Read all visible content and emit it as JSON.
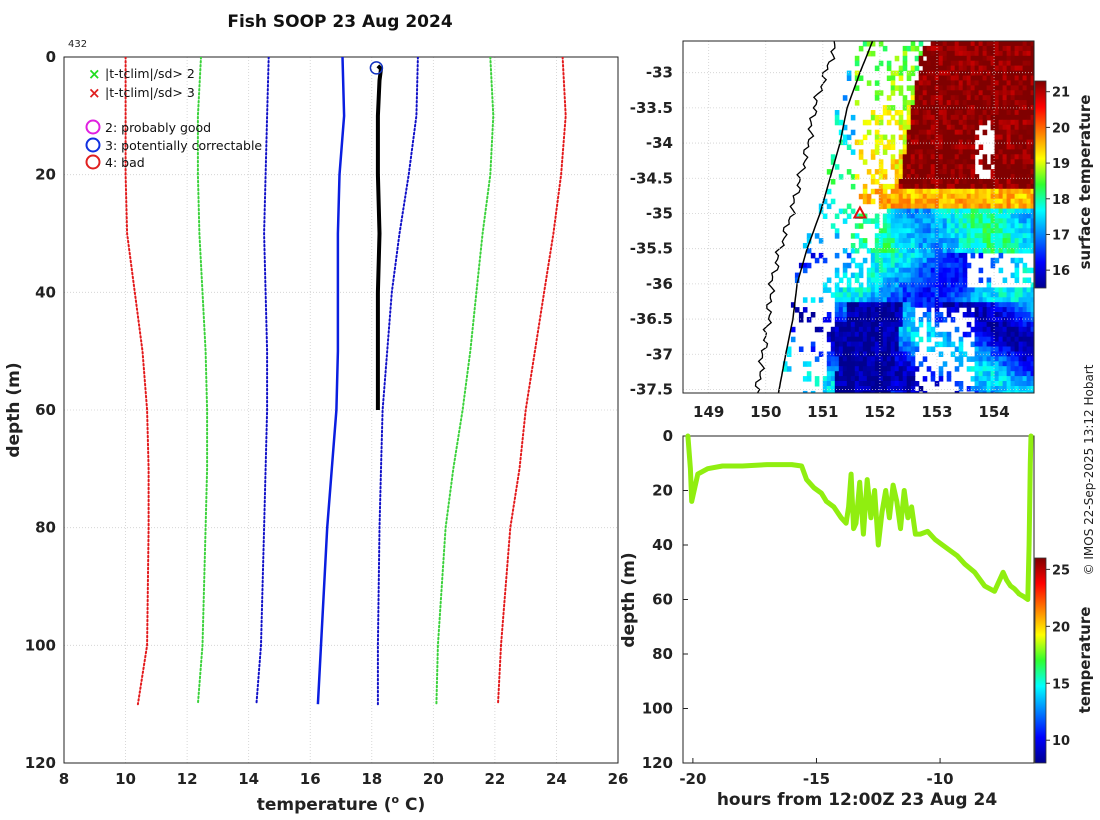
{
  "chart_data": [
    {
      "type": "line",
      "name": "profile",
      "title": "Fish SOOP 23 Aug 2024",
      "profile_id": "432",
      "xlabel": "temperature",
      "xlabel_unit": "(",
      "xlabel_sup": "o",
      "xlabel_tail": " C)",
      "ylabel": "depth (m)",
      "xlim": [
        8,
        26
      ],
      "ylim": [
        0,
        120
      ],
      "xticks": [
        8,
        10,
        12,
        14,
        16,
        18,
        20,
        22,
        24,
        26
      ],
      "yticks": [
        0,
        20,
        40,
        60,
        80,
        100,
        120
      ],
      "legend": [
        "|t-tclim|/sd> 2",
        "|t-tclim|/sd> 3",
        "2: probably good",
        "3: potentially correctable",
        "4: bad"
      ],
      "series": [
        {
          "name": "clim -3sd",
          "color": "#e31a1c",
          "style": "dotted",
          "x": [
            10.0,
            10.0,
            10.0,
            10.05,
            10.3,
            10.55,
            10.7,
            10.75,
            10.75,
            10.7,
            10.4
          ],
          "y": [
            0,
            10,
            20,
            30,
            40,
            50,
            60,
            70,
            80,
            100,
            110
          ]
        },
        {
          "name": "clim -2sd",
          "color": "#3cd23c",
          "style": "dotted",
          "x": [
            12.45,
            12.35,
            12.35,
            12.4,
            12.5,
            12.6,
            12.65,
            12.65,
            12.6,
            12.5,
            12.35
          ],
          "y": [
            0,
            10,
            20,
            30,
            40,
            50,
            60,
            70,
            80,
            100,
            110
          ]
        },
        {
          "name": "clim -1sd",
          "color": "#1010c8",
          "style": "dotted",
          "x": [
            14.65,
            14.6,
            14.55,
            14.5,
            14.55,
            14.6,
            14.6,
            14.55,
            14.5,
            14.4,
            14.25
          ],
          "y": [
            0,
            10,
            20,
            30,
            40,
            50,
            60,
            70,
            80,
            100,
            110
          ]
        },
        {
          "name": "clim mean",
          "color": "#0a1ee0",
          "style": "solid",
          "x": [
            17.05,
            17.1,
            16.95,
            16.9,
            16.9,
            16.9,
            16.85,
            16.7,
            16.55,
            16.35,
            16.25
          ],
          "y": [
            0,
            10,
            20,
            30,
            40,
            50,
            60,
            70,
            80,
            100,
            110
          ]
        },
        {
          "name": "clim +1sd",
          "color": "#1010c8",
          "style": "dotted",
          "x": [
            19.5,
            19.45,
            19.2,
            18.9,
            18.65,
            18.5,
            18.35,
            18.3,
            18.25,
            18.2,
            18.2
          ],
          "y": [
            0,
            10,
            20,
            30,
            40,
            50,
            60,
            70,
            80,
            100,
            110
          ]
        },
        {
          "name": "clim +2sd",
          "color": "#3cd23c",
          "style": "dotted",
          "x": [
            21.85,
            21.95,
            21.85,
            21.6,
            21.4,
            21.2,
            20.95,
            20.65,
            20.4,
            20.15,
            20.1
          ],
          "y": [
            0,
            10,
            20,
            30,
            40,
            50,
            60,
            70,
            80,
            100,
            110
          ]
        },
        {
          "name": "clim +3sd",
          "color": "#e31a1c",
          "style": "dotted",
          "x": [
            24.2,
            24.3,
            24.15,
            23.9,
            23.6,
            23.3,
            23.0,
            22.8,
            22.5,
            22.2,
            22.1
          ],
          "y": [
            0,
            10,
            20,
            30,
            40,
            50,
            60,
            70,
            80,
            100,
            110
          ]
        },
        {
          "name": "observed",
          "color": "#000000",
          "style": "solid",
          "x": [
            18.2,
            18.3,
            18.25,
            18.2,
            18.2,
            18.25,
            18.2,
            18.2,
            18.2
          ],
          "y": [
            1.5,
            2.0,
            4.0,
            10,
            20,
            30,
            40,
            50,
            60
          ]
        }
      ],
      "flag_marker": {
        "x": 18.15,
        "y": 1,
        "flag": "3: potentially correctable"
      }
    },
    {
      "type": "heatmap",
      "name": "sst_map",
      "xlim": [
        148.55,
        154.7
      ],
      "ylim": [
        -37.55,
        -32.55
      ],
      "xticks": [
        149,
        150,
        151,
        152,
        153,
        154
      ],
      "yticks": [
        -33,
        -33.5,
        -34,
        -34.5,
        -35,
        -35.5,
        -36,
        -36.5,
        -37,
        -37.5
      ],
      "colorbar_label": "surface temperature",
      "colorbar_ticks": [
        16,
        17,
        18,
        19,
        20,
        21
      ],
      "clim": [
        15.5,
        21.3
      ],
      "marker": {
        "lon": 151.65,
        "lat": -35.0
      }
    },
    {
      "type": "scatter",
      "name": "time_depth",
      "xlabel": "hours from 12:00Z 23 Aug 24",
      "ylabel": "depth (m)",
      "xlim": [
        -20.4,
        -6.2
      ],
      "ylim": [
        0,
        120
      ],
      "xticks": [
        -20,
        -15,
        -10
      ],
      "yticks": [
        0,
        20,
        40,
        60,
        80,
        100,
        120
      ],
      "colorbar_label": "temperature",
      "colorbar_ticks": [
        10,
        15,
        20,
        25
      ],
      "clim": [
        8,
        26
      ],
      "point_temperature": 16.5,
      "x": [
        -20.2,
        -20.1,
        -20.05,
        -19.8,
        -19.4,
        -18.8,
        -18.0,
        -17.0,
        -16.0,
        -15.6,
        -15.4,
        -15.1,
        -14.8,
        -14.6,
        -14.3,
        -14.0,
        -13.8,
        -13.7,
        -13.6,
        -13.5,
        -13.4,
        -13.25,
        -13.1,
        -12.95,
        -12.8,
        -12.65,
        -12.5,
        -12.35,
        -12.2,
        -12.05,
        -11.9,
        -11.75,
        -11.6,
        -11.45,
        -11.3,
        -11.15,
        -11.0,
        -10.8,
        -10.5,
        -10.2,
        -9.9,
        -9.6,
        -9.3,
        -9.0,
        -8.6,
        -8.2,
        -7.8,
        -7.45,
        -7.3,
        -7.15,
        -7.0,
        -6.8,
        -6.6,
        -6.45,
        -6.4,
        -6.35,
        -6.32
      ],
      "y": [
        0,
        12,
        24,
        14,
        12,
        11,
        11,
        10.5,
        10.5,
        11,
        16,
        19,
        21,
        24,
        26,
        30,
        32,
        26,
        14,
        34,
        32,
        17,
        36,
        16,
        30,
        20,
        40,
        28,
        20,
        30,
        18,
        24,
        34,
        20,
        30,
        26,
        36,
        36,
        35,
        38,
        40,
        42,
        44,
        47,
        50,
        55,
        57,
        50,
        53,
        55,
        56,
        58,
        59,
        60,
        40,
        10,
        0
      ]
    }
  ],
  "footer": {
    "watermark": "© IMOS 22-Sep-2025 13:12 Hobart"
  },
  "colors": {
    "axis": "#222222",
    "grid": "#cfcfcf",
    "land": "#ffffff",
    "coast": "#000000"
  }
}
